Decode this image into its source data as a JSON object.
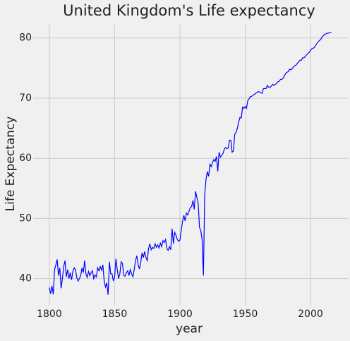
{
  "chart_data": {
    "type": "line",
    "title": "United Kingdom's Life expectancy",
    "x_label": "year",
    "y_label": "Life Expectancy",
    "x": [
      1800,
      1801,
      1802,
      1803,
      1804,
      1805,
      1806,
      1807,
      1808,
      1809,
      1810,
      1811,
      1812,
      1813,
      1814,
      1815,
      1816,
      1817,
      1818,
      1819,
      1820,
      1821,
      1822,
      1823,
      1824,
      1825,
      1826,
      1827,
      1828,
      1829,
      1830,
      1831,
      1832,
      1833,
      1834,
      1835,
      1836,
      1837,
      1838,
      1839,
      1840,
      1841,
      1842,
      1843,
      1844,
      1845,
      1846,
      1847,
      1848,
      1849,
      1850,
      1851,
      1852,
      1853,
      1854,
      1855,
      1856,
      1857,
      1858,
      1859,
      1860,
      1861,
      1862,
      1863,
      1864,
      1865,
      1866,
      1867,
      1868,
      1869,
      1870,
      1871,
      1872,
      1873,
      1874,
      1875,
      1876,
      1877,
      1878,
      1879,
      1880,
      1881,
      1882,
      1883,
      1884,
      1885,
      1886,
      1887,
      1888,
      1889,
      1890,
      1891,
      1892,
      1893,
      1894,
      1895,
      1896,
      1897,
      1898,
      1899,
      1900,
      1901,
      1902,
      1903,
      1904,
      1905,
      1906,
      1907,
      1908,
      1909,
      1910,
      1911,
      1912,
      1913,
      1914,
      1915,
      1916,
      1917,
      1918,
      1919,
      1920,
      1921,
      1922,
      1923,
      1924,
      1925,
      1926,
      1927,
      1928,
      1929,
      1930,
      1931,
      1932,
      1933,
      1934,
      1935,
      1936,
      1937,
      1938,
      1939,
      1940,
      1941,
      1942,
      1943,
      1944,
      1945,
      1946,
      1947,
      1948,
      1949,
      1950,
      1951,
      1952,
      1953,
      1954,
      1955,
      1956,
      1957,
      1958,
      1959,
      1960,
      1961,
      1962,
      1963,
      1964,
      1965,
      1966,
      1967,
      1968,
      1969,
      1970,
      1971,
      1972,
      1973,
      1974,
      1975,
      1976,
      1977,
      1978,
      1979,
      1980,
      1981,
      1982,
      1983,
      1984,
      1985,
      1986,
      1987,
      1988,
      1989,
      1990,
      1991,
      1992,
      1993,
      1994,
      1995,
      1996,
      1997,
      1998,
      1999,
      2000,
      2001,
      2002,
      2003,
      2004,
      2005,
      2006,
      2007,
      2008,
      2009,
      2010,
      2011,
      2012,
      2013,
      2014,
      2015,
      2016
    ],
    "series": [
      {
        "name": "Life Expectancy",
        "color": "#0000ff",
        "values": [
          38.5,
          37.5,
          38.8,
          37.4,
          41.5,
          42.3,
          43.2,
          40.5,
          41.8,
          38.4,
          40.0,
          42.0,
          43.0,
          40.3,
          41.5,
          40.0,
          41.0,
          39.8,
          41.2,
          41.8,
          41.5,
          40.2,
          39.6,
          40.0,
          40.5,
          41.8,
          41.0,
          43.0,
          40.8,
          40.2,
          41.2,
          40.5,
          41.0,
          41.3,
          40.0,
          40.6,
          40.3,
          41.8,
          41.3,
          42.0,
          41.4,
          42.3,
          39.6,
          38.6,
          39.3,
          37.3,
          42.8,
          40.8,
          40.8,
          39.6,
          40.3,
          43.3,
          41.5,
          40.0,
          40.8,
          42.8,
          42.5,
          40.5,
          40.4,
          41.0,
          41.3,
          40.5,
          41.5,
          40.8,
          40.3,
          41.5,
          43.0,
          43.8,
          42.3,
          41.6,
          42.7,
          44.3,
          43.5,
          44.5,
          43.5,
          43.0,
          45.0,
          45.8,
          44.8,
          45.2,
          45.0,
          45.8,
          45.2,
          45.6,
          45.1,
          45.9,
          45.3,
          46.3,
          46.0,
          46.5,
          45.0,
          44.7,
          45.3,
          44.8,
          48.3,
          45.8,
          47.7,
          47.2,
          46.5,
          46.2,
          46.4,
          48.0,
          49.5,
          50.5,
          49.6,
          50.9,
          50.6,
          51.2,
          51.8,
          52.0,
          53.0,
          51.5,
          54.5,
          53.5,
          52.5,
          48.5,
          48.0,
          46.5,
          40.5,
          54.0,
          56.5,
          57.8,
          57.0,
          59.0,
          58.6,
          59.3,
          59.8,
          59.5,
          60.3,
          57.8,
          61.0,
          60.2,
          60.5,
          60.8,
          61.5,
          61.8,
          61.6,
          61.7,
          63.0,
          63.0,
          61.0,
          61.2,
          64.0,
          64.3,
          65.0,
          66.0,
          66.8,
          66.7,
          68.5,
          68.3,
          68.6,
          68.3,
          69.6,
          69.9,
          70.3,
          70.3,
          70.5,
          70.6,
          70.8,
          70.9,
          71.1,
          71.0,
          70.9,
          70.8,
          71.6,
          71.6,
          71.6,
          72.1,
          71.8,
          71.8,
          72.0,
          72.3,
          72.1,
          72.3,
          72.4,
          72.7,
          72.8,
          73.1,
          73.1,
          73.3,
          73.7,
          74.1,
          74.3,
          74.4,
          74.8,
          74.7,
          74.9,
          75.2,
          75.4,
          75.5,
          75.8,
          76.0,
          76.3,
          76.3,
          76.7,
          76.7,
          76.9,
          77.2,
          77.4,
          77.6,
          77.9,
          78.2,
          78.3,
          78.4,
          78.8,
          79.1,
          79.4,
          79.6,
          79.8,
          80.2,
          80.4,
          80.6,
          80.7,
          80.8,
          80.8,
          80.9,
          80.9
        ]
      }
    ],
    "xlim": [
      1787.6,
      2029.2
    ],
    "ylim": [
      35.5,
      82.2
    ],
    "xticks": [
      1800,
      1850,
      1900,
      1950,
      2000
    ],
    "yticks": [
      40,
      50,
      60,
      70,
      80
    ],
    "grid": true
  }
}
